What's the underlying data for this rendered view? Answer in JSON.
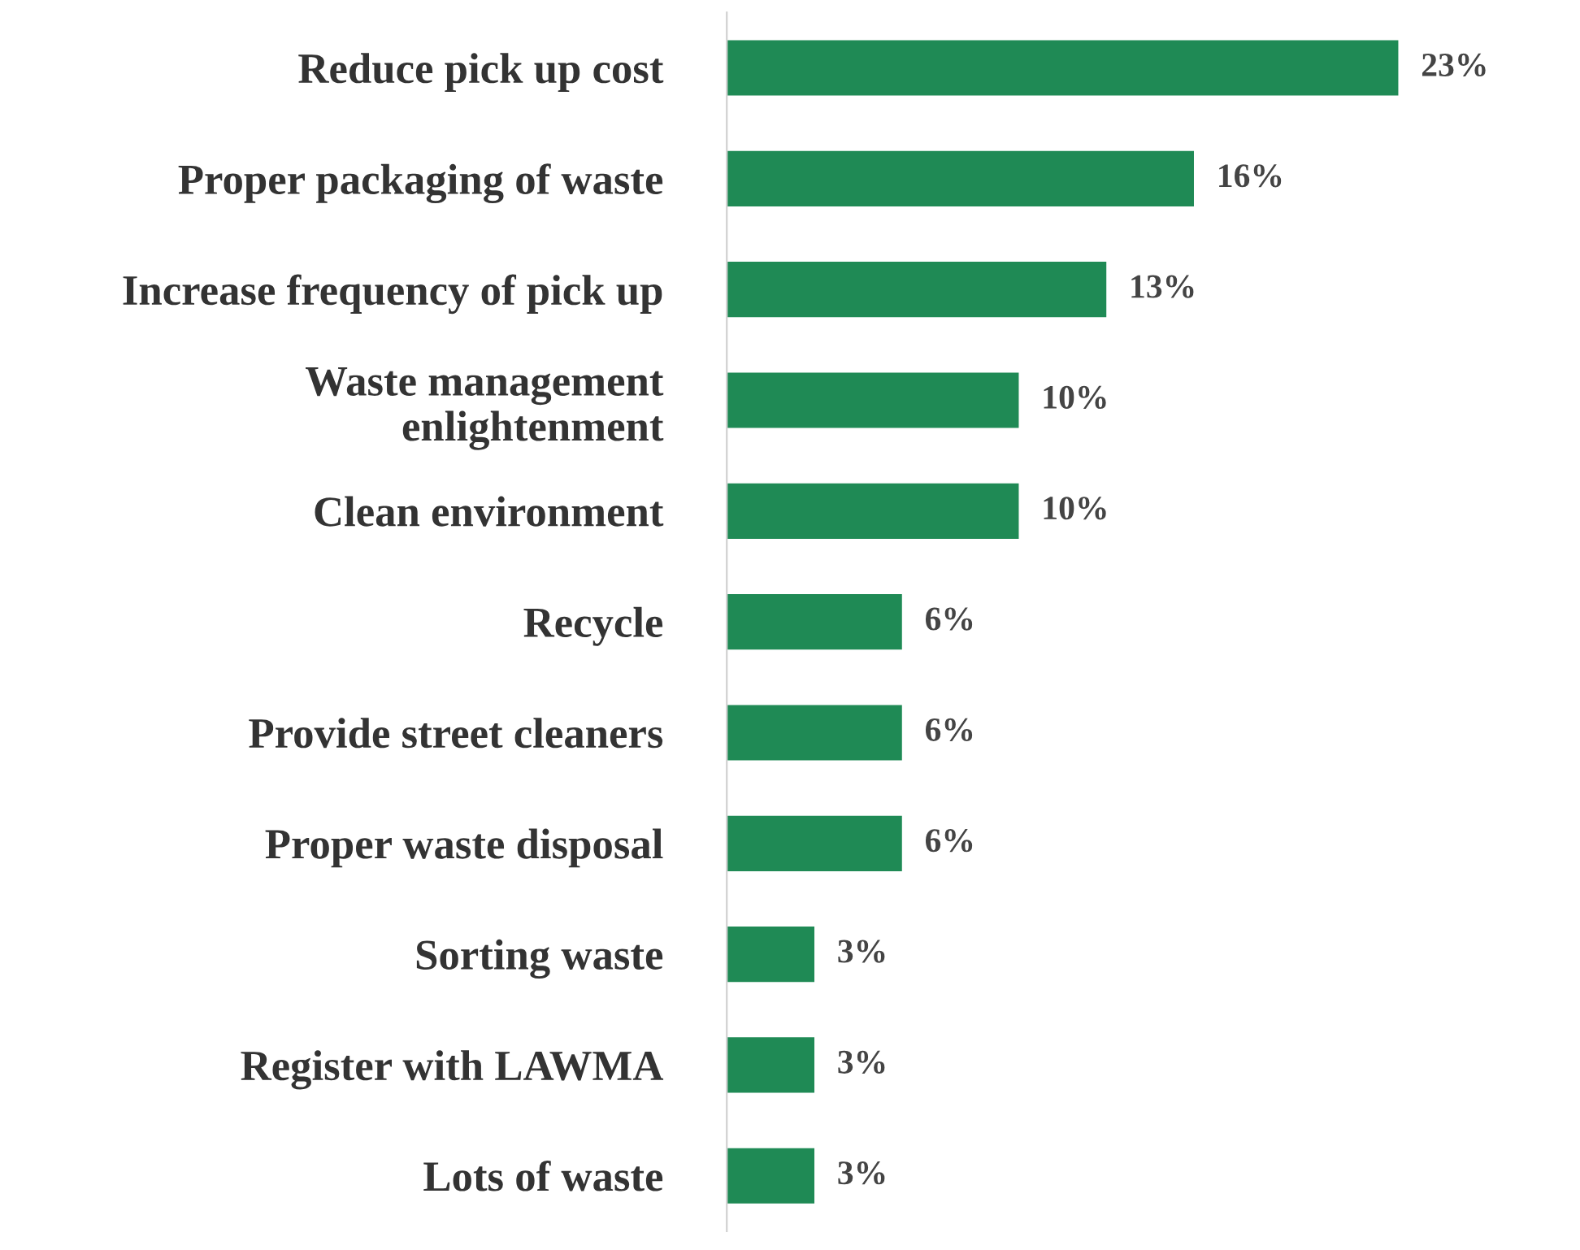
{
  "chart_data": {
    "type": "bar",
    "orientation": "horizontal",
    "categories": [
      "Reduce pick up cost",
      "Proper packaging of waste",
      "Increase frequency of pick up",
      "Waste management\nenlightenment",
      "Clean environment",
      "Recycle",
      "Provide street cleaners",
      "Proper waste disposal",
      "Sorting waste",
      "Register with LAWMA",
      "Lots of waste"
    ],
    "values": [
      23,
      16,
      13,
      10,
      10,
      6,
      6,
      6,
      3,
      3,
      3
    ],
    "value_labels": [
      "23%",
      "16%",
      "13%",
      "10%",
      "10%",
      "6%",
      "6%",
      "6%",
      "3%",
      "3%",
      "3%"
    ],
    "color": "#1f8a55",
    "grid": false,
    "legend": false
  }
}
